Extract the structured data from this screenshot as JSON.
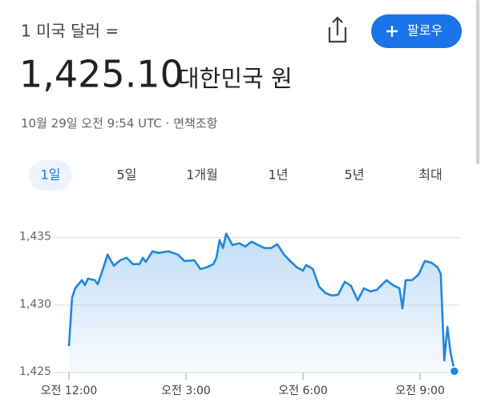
{
  "header": {
    "base": "1 미국 달러 =",
    "follow": "팔로우"
  },
  "quote": {
    "price": "1,425.10",
    "currency": "대한민국 원"
  },
  "meta": {
    "timestamp": "10월 29일 오전 9:54 UTC",
    "separator": "·",
    "disclaimer": "면책조항"
  },
  "tabs": [
    "1일",
    "5일",
    "1개월",
    "1년",
    "5년",
    "최대"
  ],
  "selected_tab": "1일",
  "chart_data": {
    "type": "line",
    "color": "#1f86e0",
    "x": [
      0.0,
      0.08,
      0.16,
      0.33,
      0.41,
      0.49,
      0.66,
      0.74,
      0.9,
      0.99,
      1.15,
      1.32,
      1.48,
      1.64,
      1.81,
      1.89,
      1.97,
      2.14,
      2.3,
      2.55,
      2.79,
      2.96,
      3.21,
      3.37,
      3.53,
      3.7,
      3.78,
      3.86,
      3.95,
      4.03,
      4.19,
      4.36,
      4.52,
      4.68,
      4.85,
      5.01,
      5.18,
      5.34,
      5.51,
      5.67,
      5.84,
      6.0,
      6.08,
      6.25,
      6.41,
      6.58,
      6.74,
      6.9,
      7.07,
      7.23,
      7.4,
      7.56,
      7.73,
      7.89,
      8.14,
      8.3,
      8.47,
      8.55,
      8.63,
      8.79,
      8.96,
      9.12,
      9.29,
      9.45,
      9.53,
      9.62,
      9.7,
      9.78,
      9.88
    ],
    "values": [
      1426.96,
      1430.54,
      1431.25,
      1431.85,
      1431.49,
      1431.96,
      1431.85,
      1431.55,
      1432.92,
      1433.75,
      1432.92,
      1433.33,
      1433.51,
      1433.04,
      1433.04,
      1433.51,
      1433.21,
      1433.99,
      1433.87,
      1433.99,
      1433.75,
      1433.27,
      1433.33,
      1432.68,
      1432.8,
      1433.04,
      1433.51,
      1434.82,
      1434.23,
      1435.3,
      1434.46,
      1434.58,
      1434.35,
      1434.7,
      1434.46,
      1434.23,
      1434.23,
      1434.52,
      1433.75,
      1433.27,
      1432.8,
      1432.56,
      1432.98,
      1432.68,
      1431.37,
      1430.89,
      1430.71,
      1430.77,
      1431.73,
      1431.43,
      1430.36,
      1431.25,
      1431.01,
      1431.13,
      1431.85,
      1431.49,
      1431.25,
      1429.76,
      1431.85,
      1431.85,
      1432.26,
      1433.27,
      1433.15,
      1432.8,
      1432.32,
      1425.89,
      1428.39,
      1426.49,
      1425.1
    ],
    "xlim": [
      0,
      10
    ],
    "xticks": [
      {
        "value": 0,
        "label": "오전 12:00"
      },
      {
        "value": 3,
        "label": "오전 3:00"
      },
      {
        "value": 6,
        "label": "오전 6:00"
      },
      {
        "value": 9,
        "label": "오전 9:00"
      }
    ],
    "ylim": [
      1425,
      1437
    ],
    "yticks": [
      {
        "value": 1425,
        "label": "1,425"
      },
      {
        "value": 1430,
        "label": "1,430"
      },
      {
        "value": 1435,
        "label": "1,435"
      }
    ],
    "grid": true
  }
}
